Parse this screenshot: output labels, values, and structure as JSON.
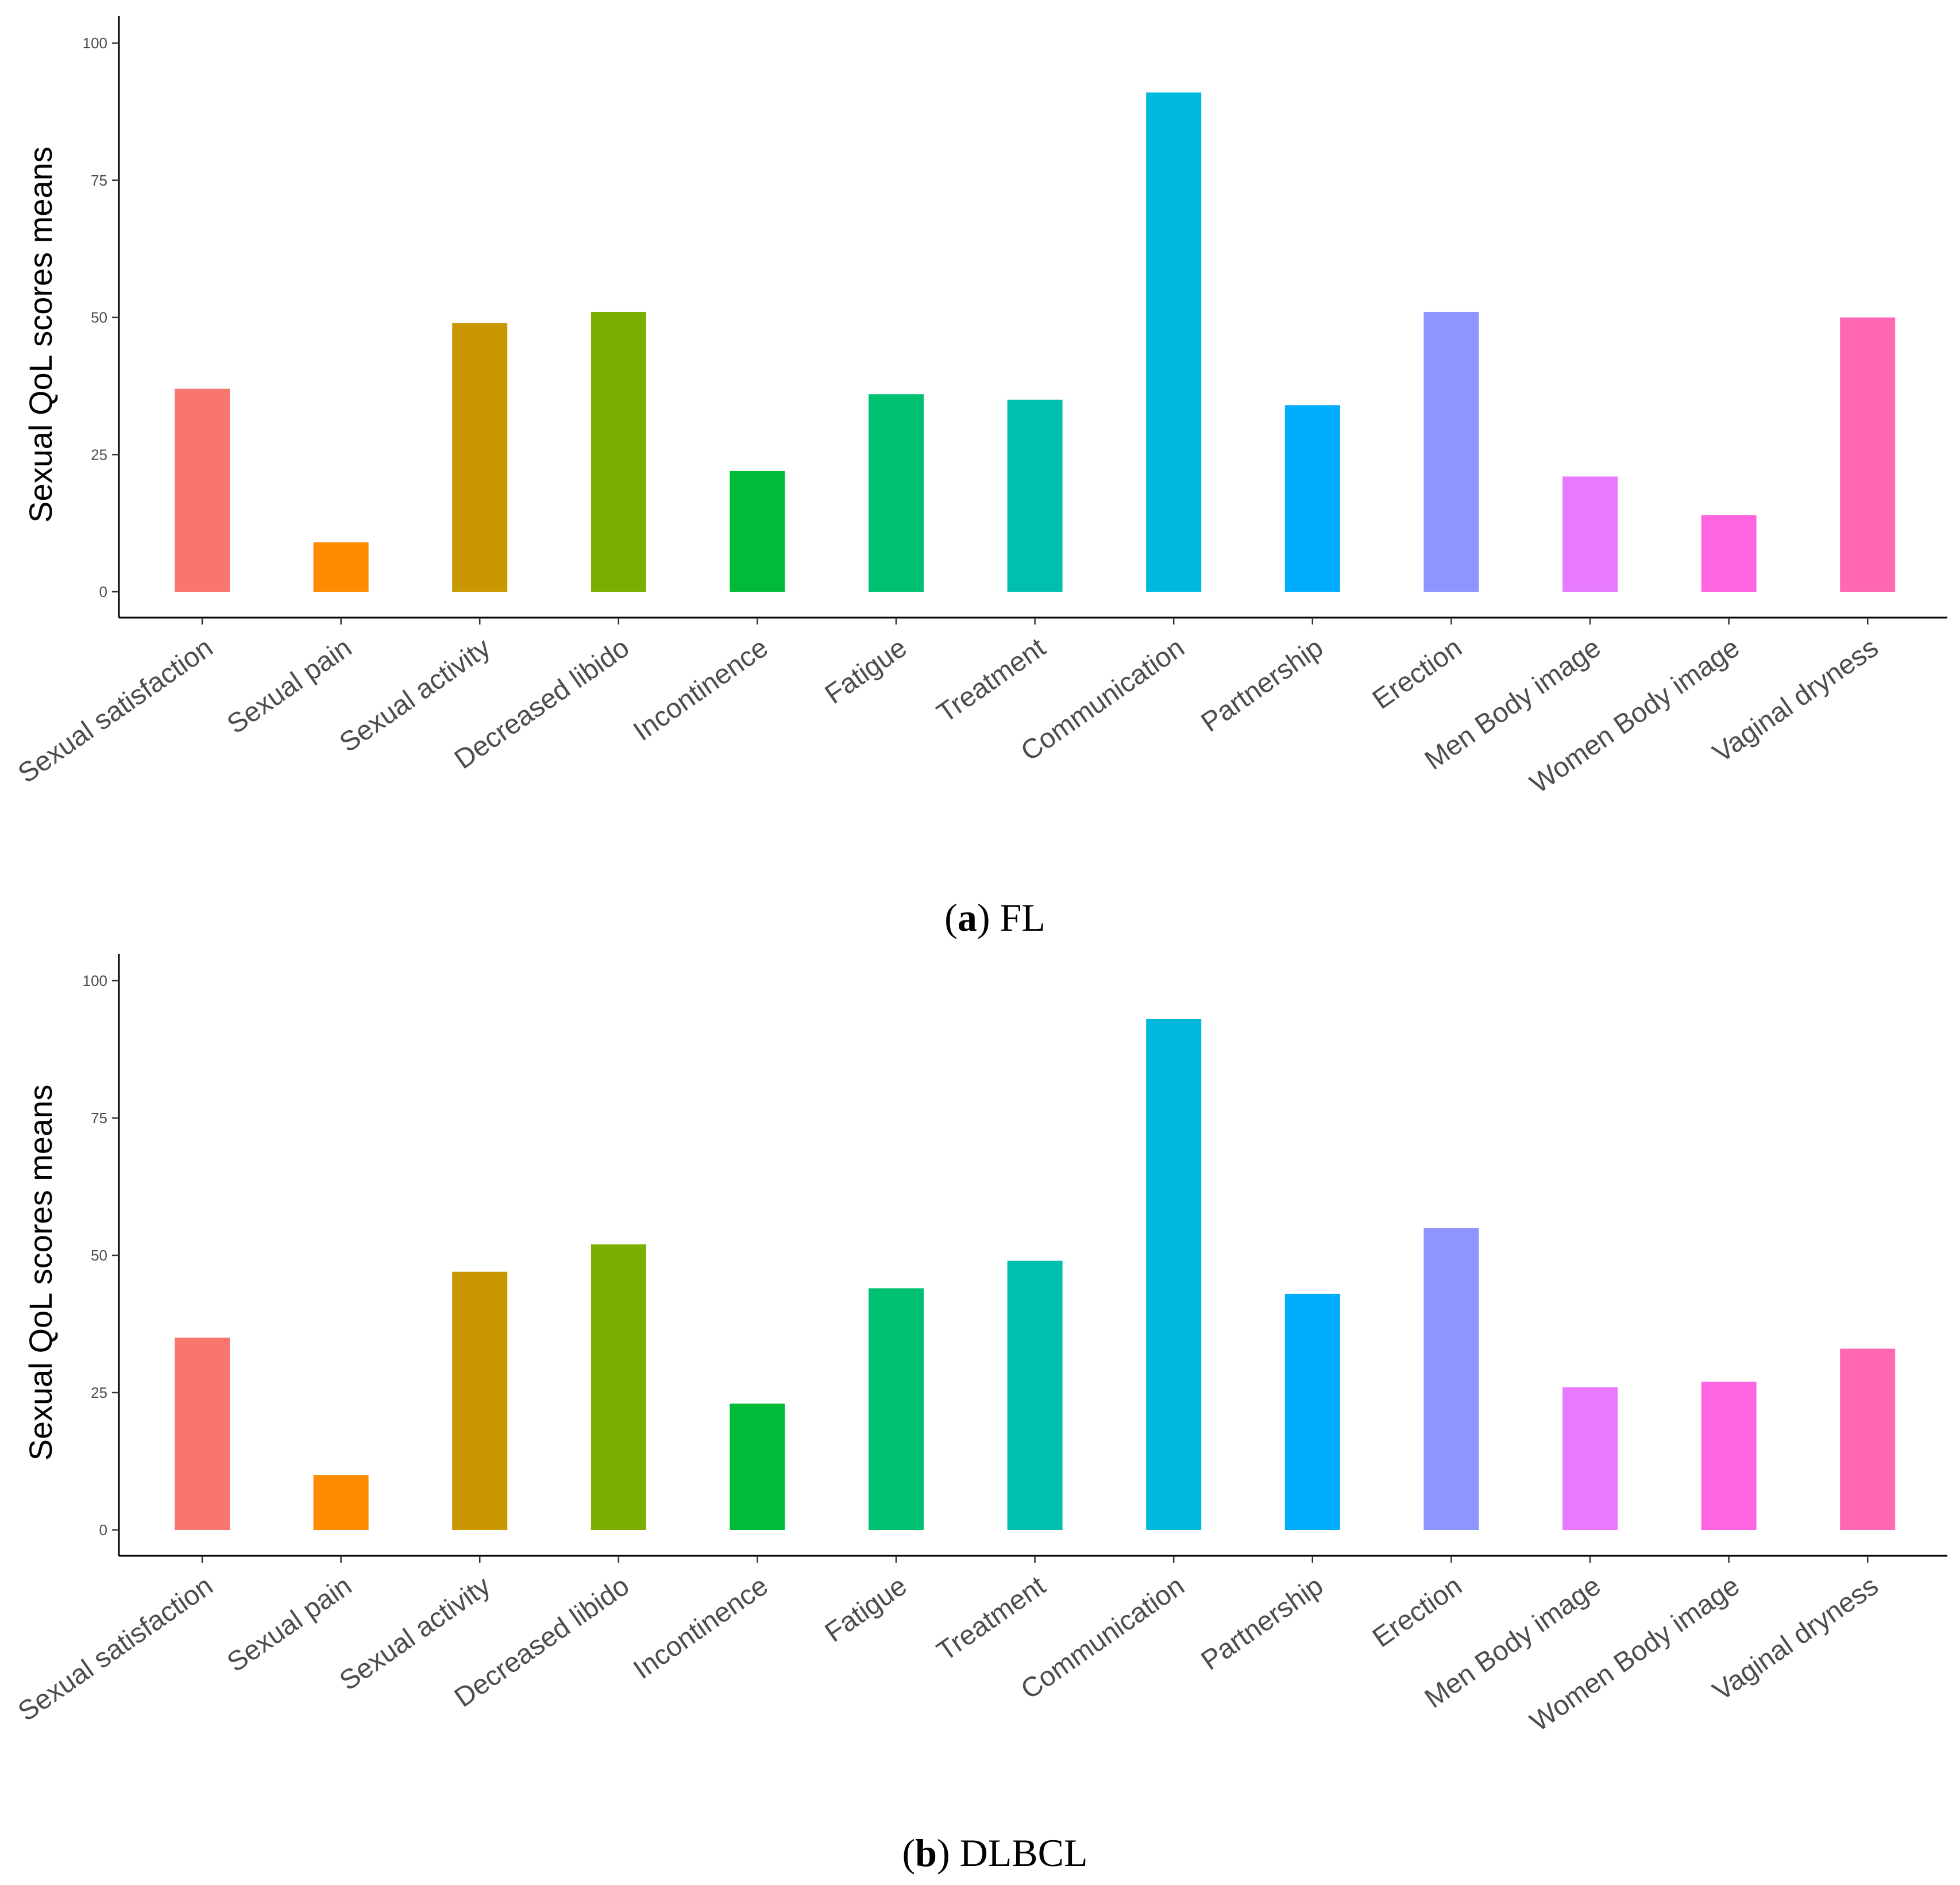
{
  "chart_data": [
    {
      "type": "bar",
      "caption": {
        "prefix": "(",
        "letter": "a",
        "suffix": ") FL"
      },
      "ylabel": "Sexual QoL scores means",
      "xlabel": "",
      "ylim": [
        0,
        100
      ],
      "yticks": [
        0,
        25,
        50,
        75,
        100
      ],
      "grid": false,
      "legend": "none",
      "categories": [
        "Sexual satisfaction",
        "Sexual pain",
        "Sexual activity",
        "Decreased libido",
        "Incontinence",
        "Fatigue",
        "Treatment",
        "Communication",
        "Partnership",
        "Erection",
        "Men Body image",
        "Women Body image",
        "Vaginal dryness"
      ],
      "values": [
        37,
        9,
        49,
        51,
        22,
        36,
        35,
        91,
        34,
        51,
        21,
        14,
        50
      ]
    },
    {
      "type": "bar",
      "caption": {
        "prefix": "(",
        "letter": "b",
        "suffix": ") DLBCL"
      },
      "ylabel": "Sexual QoL scores means",
      "xlabel": "",
      "ylim": [
        0,
        100
      ],
      "yticks": [
        0,
        25,
        50,
        75,
        100
      ],
      "grid": false,
      "legend": "none",
      "categories": [
        "Sexual satisfaction",
        "Sexual pain",
        "Sexual activity",
        "Decreased libido",
        "Incontinence",
        "Fatigue",
        "Treatment",
        "Communication",
        "Partnership",
        "Erection",
        "Men Body image",
        "Women Body image",
        "Vaginal dryness"
      ],
      "values": [
        35,
        10,
        47,
        52,
        23,
        44,
        49,
        93,
        43,
        55,
        26,
        27,
        33
      ]
    }
  ],
  "colors": [
    "#F8766D",
    "#FF8C00",
    "#C99800",
    "#7CAE00",
    "#00BA38",
    "#00C072",
    "#00BFAE",
    "#00B8DB",
    "#00ACFC",
    "#8F95FF",
    "#E77AFF",
    "#FF64E1",
    "#FF67B4"
  ]
}
